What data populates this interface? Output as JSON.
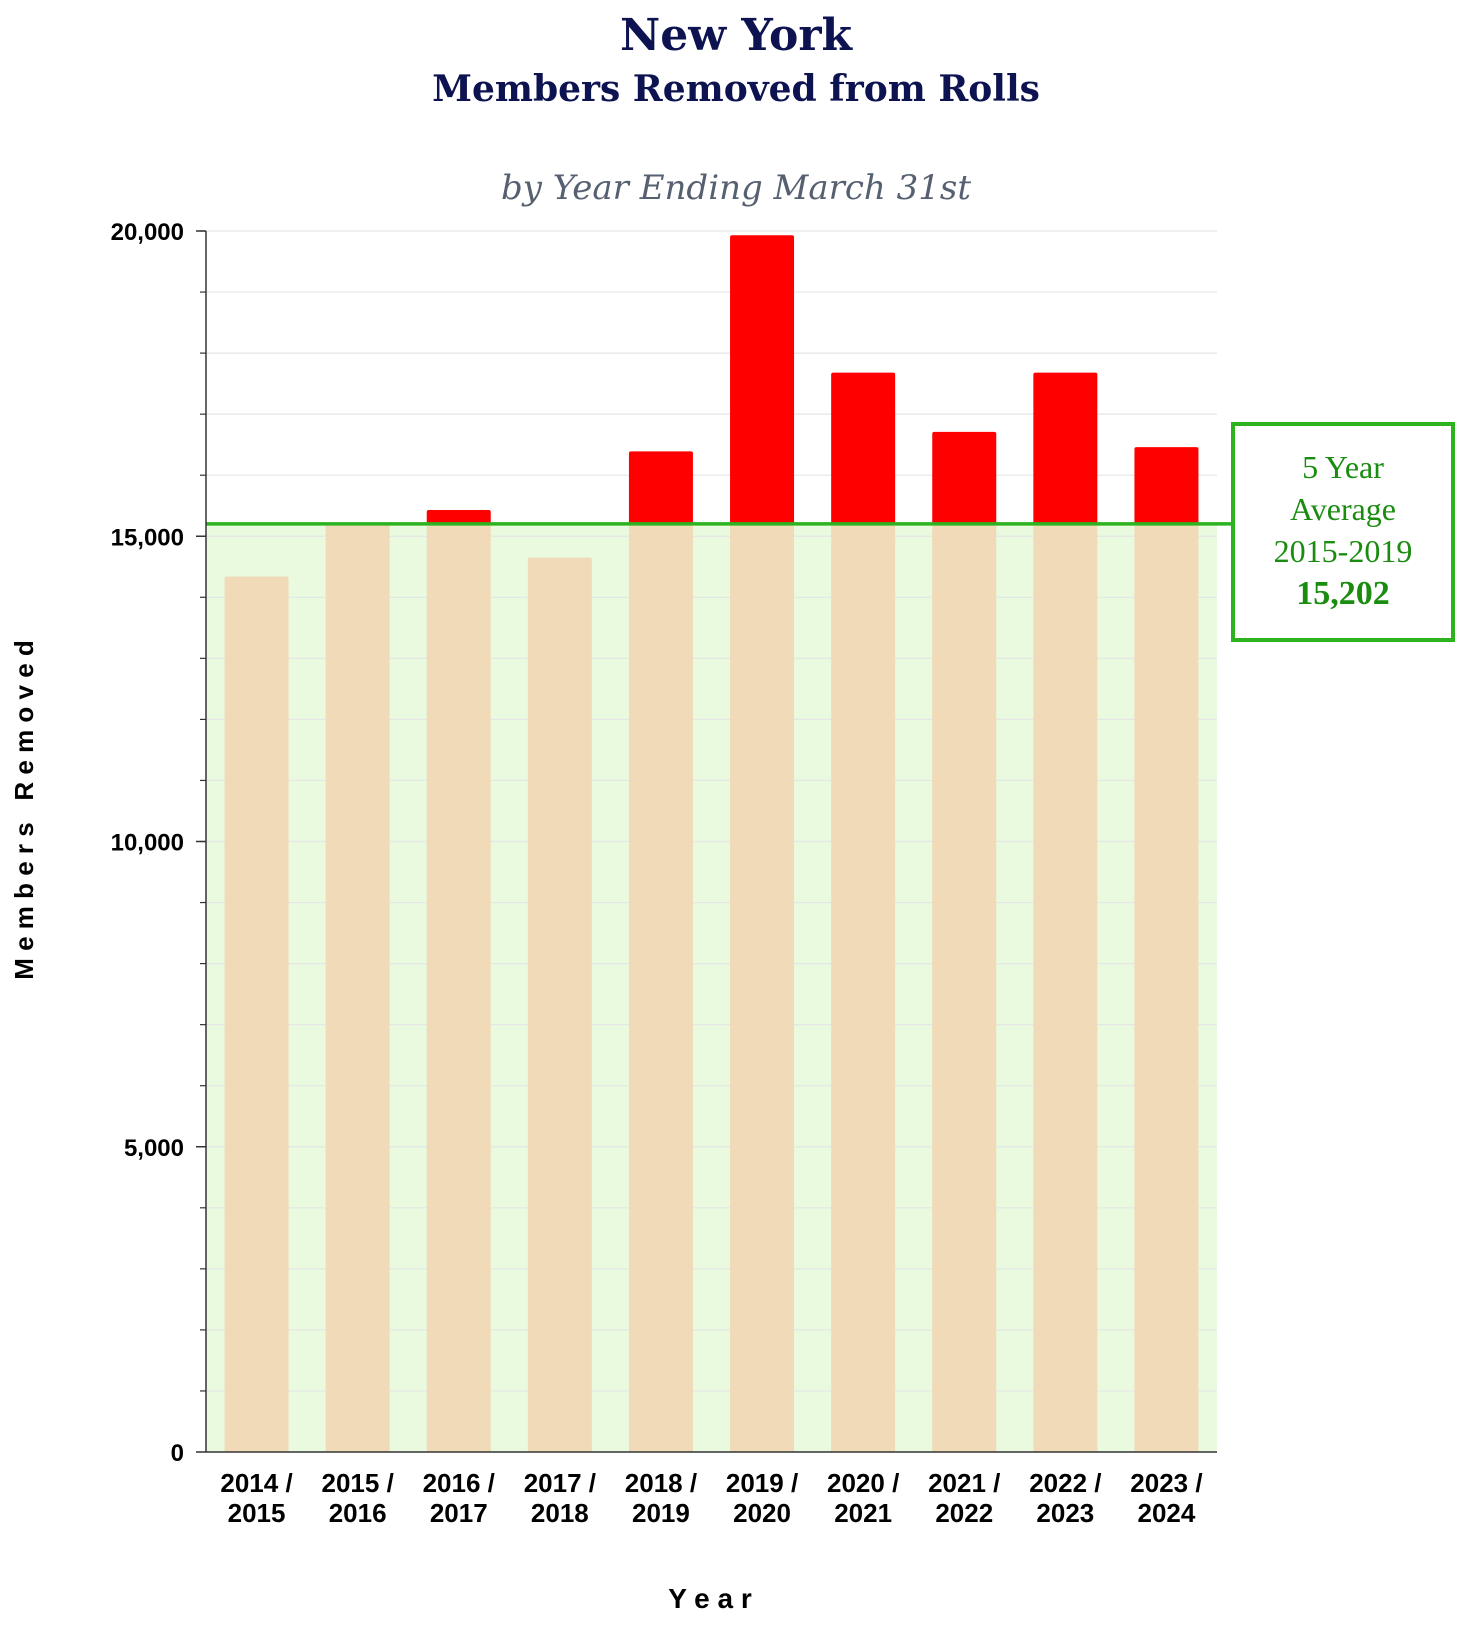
{
  "chart_data": {
    "type": "bar",
    "title": "New York",
    "title_line2": "Members Removed from Rolls",
    "subtitle": "by Year Ending March 31st",
    "xlabel": "Y e a r",
    "ylabel": "M e m b e r s   R e m o v e d",
    "ylim": [
      0,
      20000
    ],
    "y_ticks": [
      0,
      5000,
      10000,
      15000,
      20000
    ],
    "y_tick_labels": [
      "0",
      "5,000",
      "10,000",
      "15,000",
      "20,000"
    ],
    "grid": true,
    "categories": [
      [
        "2014 /",
        "2015"
      ],
      [
        "2015 /",
        "2016"
      ],
      [
        "2016 /",
        "2017"
      ],
      [
        "2017 /",
        "2018"
      ],
      [
        "2018 /",
        "2019"
      ],
      [
        "2019 /",
        "2020"
      ],
      [
        "2020 /",
        "2021"
      ],
      [
        "2021 /",
        "2022"
      ],
      [
        "2022 /",
        "2023"
      ],
      [
        "2023 /",
        "2024"
      ]
    ],
    "values": [
      14340,
      15190,
      15430,
      14650,
      16390,
      19930,
      17680,
      16710,
      17680,
      16460
    ],
    "reference_line": {
      "value": 15202,
      "label_lines": [
        "5 Year",
        "Average",
        "2015-2019"
      ],
      "label_value": "15,202"
    },
    "colors": {
      "below_average": "#f0dab8",
      "above_average": "#ff0000",
      "average_band": "#e9fadf",
      "average_line": "#2db31f",
      "annotation_text": "#1a8c10",
      "title": "#0d1250",
      "subtitle": "#566070"
    }
  }
}
